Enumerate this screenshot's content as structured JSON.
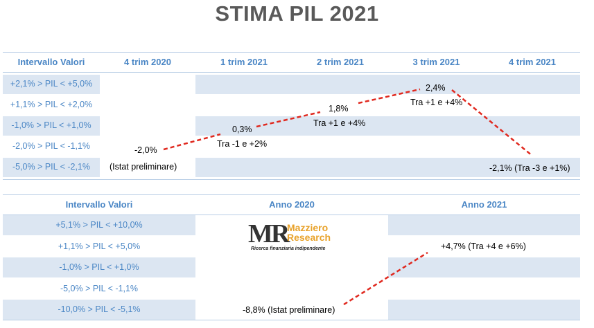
{
  "title": "STIMA PIL 2021",
  "colors": {
    "title": "#595959",
    "header": "#4a86c5",
    "band": "#dce6f2",
    "line": "#e0281e"
  },
  "chart_data": [
    {
      "type": "table",
      "columns": [
        "Intervallo Valori",
        "4 trim 2020",
        "1 trim 2021",
        "2 trim 2021",
        "3 trim 2021",
        "4 trim 2021"
      ],
      "rows": [
        "+2,1% > PIL < +5,0%",
        "+1,1% > PIL < +2,0%",
        "-1,0% > PIL < +1,0%",
        "-2,0% > PIL < -1,1%",
        "-5,0% > PIL < -2,1%"
      ],
      "points": [
        {
          "period": "4 trim 2020",
          "value": -2.0,
          "label": "-2,0%",
          "note": "(Istat preliminare)"
        },
        {
          "period": "1 trim 2021",
          "value": 0.3,
          "label": "0,3%",
          "note": "Tra -1 e +2%"
        },
        {
          "period": "2 trim 2021",
          "value": 1.8,
          "label": "1,8%",
          "note": "Tra +1 e +4%"
        },
        {
          "period": "3 trim 2021",
          "value": 2.4,
          "label": "2,4%",
          "note": "Tra +1 e +4%"
        },
        {
          "period": "4 trim 2021",
          "value": -2.1,
          "label": "-2,1% (Tra -3 e +1%)",
          "note": ""
        }
      ]
    },
    {
      "type": "table",
      "columns": [
        "Intervallo Valori",
        "Anno 2020",
        "Anno 2021"
      ],
      "rows": [
        "+5,1% > PIL < +10,0%",
        "+1,1% > PIL < +5,0%",
        "-1,0% > PIL < +1,0%",
        "-5,0% > PIL < -1,1%",
        "-10,0% > PIL < -5,1%"
      ],
      "points": [
        {
          "period": "Anno 2020",
          "value": -8.8,
          "label": "-8,8% (Istat preliminare)"
        },
        {
          "period": "Anno 2021",
          "value": 4.7,
          "label": "+4,7% (Tra +4 e +6%)"
        }
      ]
    }
  ],
  "logo": {
    "mark": "MR",
    "name_line1": "Mazziero",
    "name_line2": "Research",
    "tagline": "Ricerca finanziaria indipendente"
  }
}
